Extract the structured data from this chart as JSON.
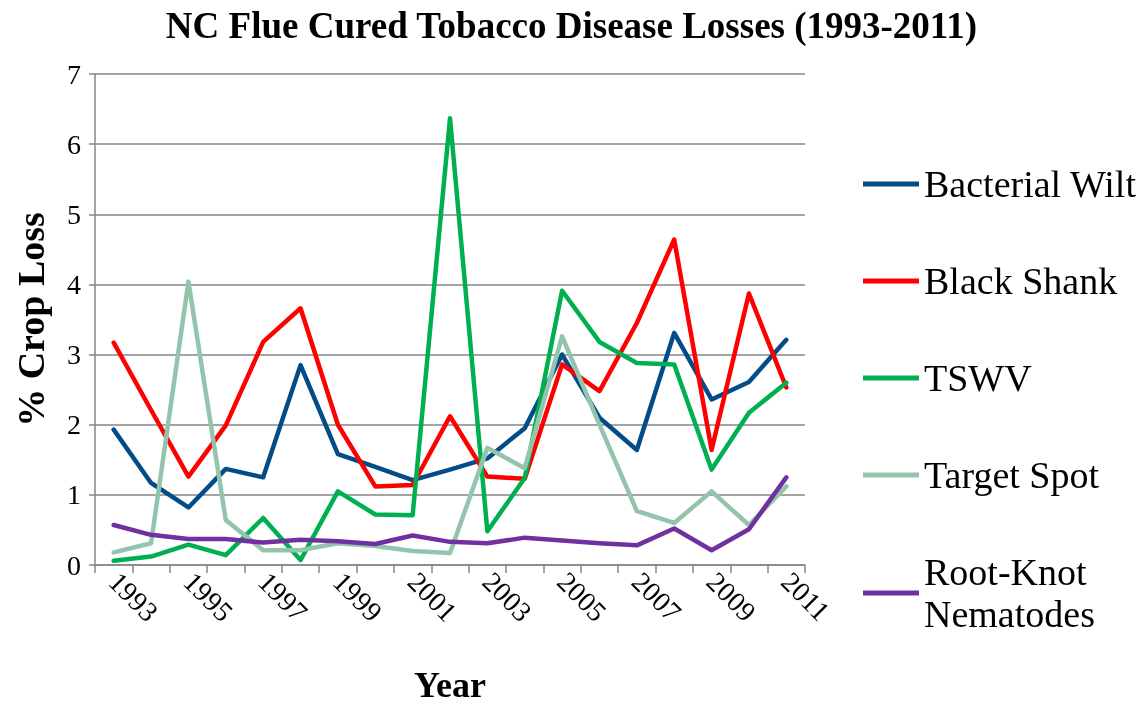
{
  "chart_data": {
    "type": "line",
    "title": "NC Flue Cured Tobacco Disease Losses (1993-2011)",
    "xlabel": "Year",
    "ylabel": "% Crop Loss",
    "categories": [
      "1993",
      null,
      "1995",
      null,
      "1997",
      null,
      "1999",
      null,
      "2001",
      null,
      "2003",
      null,
      "2005",
      null,
      "2007",
      null,
      "2009",
      null,
      "2011"
    ],
    "series": [
      {
        "name": "Bacterial Wilt",
        "color": "#034c88",
        "values": [
          1.93,
          1.17,
          0.82,
          1.37,
          1.25,
          2.85,
          1.58,
          1.4,
          1.21,
          1.36,
          1.52,
          1.95,
          3.0,
          2.1,
          1.64,
          3.31,
          2.36,
          2.61,
          3.21
        ]
      },
      {
        "name": "Black Shank",
        "color": "#ff0000",
        "values": [
          3.17,
          2.21,
          1.26,
          1.99,
          3.18,
          3.66,
          2.0,
          1.12,
          1.14,
          2.12,
          1.26,
          1.23,
          2.86,
          2.48,
          3.45,
          4.64,
          1.64,
          3.87,
          2.53
        ]
      },
      {
        "name": "TSWV",
        "color": "#00b050",
        "values": [
          0.06,
          0.12,
          0.29,
          0.14,
          0.67,
          0.07,
          1.05,
          0.72,
          0.71,
          6.37,
          0.48,
          1.24,
          3.91,
          3.18,
          2.88,
          2.86,
          1.36,
          2.17,
          2.6
        ]
      },
      {
        "name": "Target Spot",
        "color": "#93c5ac",
        "values": [
          0.18,
          0.31,
          4.04,
          0.64,
          0.21,
          0.21,
          0.31,
          0.27,
          0.2,
          0.17,
          1.67,
          1.38,
          3.26,
          2.0,
          0.77,
          0.6,
          1.05,
          0.57,
          1.12
        ]
      },
      {
        "name": "Root-Knot Nematodes",
        "color": "#7030a0",
        "values": [
          0.57,
          0.43,
          0.37,
          0.37,
          0.32,
          0.36,
          0.34,
          0.3,
          0.42,
          0.33,
          0.31,
          0.39,
          0.35,
          0.31,
          0.28,
          0.52,
          0.21,
          0.51,
          1.25
        ]
      }
    ],
    "ylim": [
      0,
      7
    ],
    "yticks": [
      0,
      1,
      2,
      3,
      4,
      5,
      6,
      7
    ],
    "grid": "y",
    "legend": "right",
    "marker": "none",
    "line_style": "solid"
  }
}
